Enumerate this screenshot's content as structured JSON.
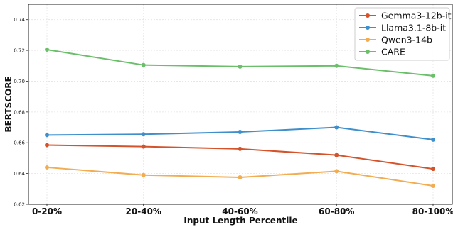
{
  "chart_data": {
    "type": "line",
    "xlabel": "Input Length Percentile",
    "ylabel": "BERTSCORE",
    "categories": [
      "0-20%",
      "20-40%",
      "40-60%",
      "60-80%",
      "80-100%"
    ],
    "ylim": [
      0.62,
      0.75
    ],
    "yticks": [
      0.62,
      0.64,
      0.66,
      0.68,
      0.7,
      0.72,
      0.74
    ],
    "ytick_labels": [
      "0.62",
      "0.64",
      "0.66",
      "0.68",
      "0.70",
      "0.72",
      "0.74"
    ],
    "grid": true,
    "legend_position": "top-right",
    "series": [
      {
        "name": "Gemma3-12b-it",
        "color": "#d4532a",
        "values": [
          0.6585,
          0.6575,
          0.656,
          0.652,
          0.643
        ]
      },
      {
        "name": "Llama3.1-8b-it",
        "color": "#3f8fcc",
        "values": [
          0.665,
          0.6655,
          0.667,
          0.67,
          0.662
        ]
      },
      {
        "name": "Qwen3-14b",
        "color": "#f2ad52",
        "values": [
          0.644,
          0.639,
          0.6375,
          0.6415,
          0.632
        ]
      },
      {
        "name": "CARE",
        "color": "#6bbf6b",
        "values": [
          0.7205,
          0.7105,
          0.7095,
          0.71,
          0.7035
        ]
      }
    ]
  }
}
